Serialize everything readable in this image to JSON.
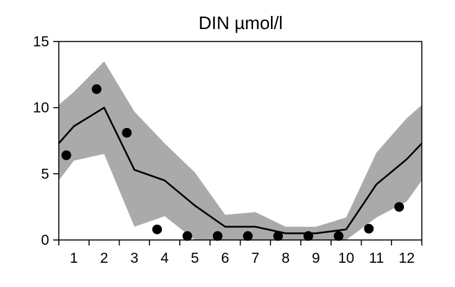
{
  "chart_data": {
    "type": "line",
    "title": "DIN µmol/l",
    "xlabel": "",
    "ylabel": "",
    "x_ticks": [
      "1",
      "2",
      "3",
      "4",
      "5",
      "6",
      "7",
      "8",
      "9",
      "10",
      "11",
      "12"
    ],
    "y_ticks": [
      "0",
      "5",
      "10",
      "15"
    ],
    "xlim": [
      0.5,
      12.5
    ],
    "ylim": [
      0,
      15
    ],
    "grid": false,
    "legend": "none",
    "colors": {
      "band": "#aaaaaa",
      "line": "#000000",
      "points": "#000000",
      "axes": "#000000"
    },
    "band": {
      "x": [
        0.5,
        1,
        2,
        3,
        4,
        5,
        6,
        7,
        8,
        9,
        10,
        11,
        12,
        12.5
      ],
      "upper": [
        10.2,
        11.2,
        13.5,
        9.7,
        7.3,
        5.1,
        1.9,
        2.1,
        1.0,
        1.0,
        1.7,
        6.6,
        9.2,
        10.2
      ],
      "lower": [
        4.5,
        6.0,
        6.5,
        1.0,
        1.8,
        0.0,
        0.0,
        0.0,
        0.0,
        0.0,
        0.0,
        1.7,
        2.9,
        4.5
      ]
    },
    "series": [
      {
        "type": "line",
        "x": [
          0.5,
          1,
          2,
          3,
          4,
          5,
          6,
          7,
          8,
          9,
          10,
          11,
          12,
          12.5
        ],
        "y": [
          7.3,
          8.6,
          10.0,
          5.3,
          4.5,
          2.6,
          1.0,
          1.0,
          0.5,
          0.5,
          0.8,
          4.2,
          6.1,
          7.3
        ]
      },
      {
        "type": "scatter",
        "x": [
          0.75,
          1.75,
          2.75,
          3.75,
          4.75,
          5.75,
          6.75,
          7.75,
          8.75,
          9.75,
          10.75,
          11.75
        ],
        "y": [
          6.4,
          11.4,
          8.1,
          0.8,
          0.3,
          0.3,
          0.3,
          0.3,
          0.3,
          0.3,
          0.85,
          2.5
        ]
      }
    ]
  }
}
